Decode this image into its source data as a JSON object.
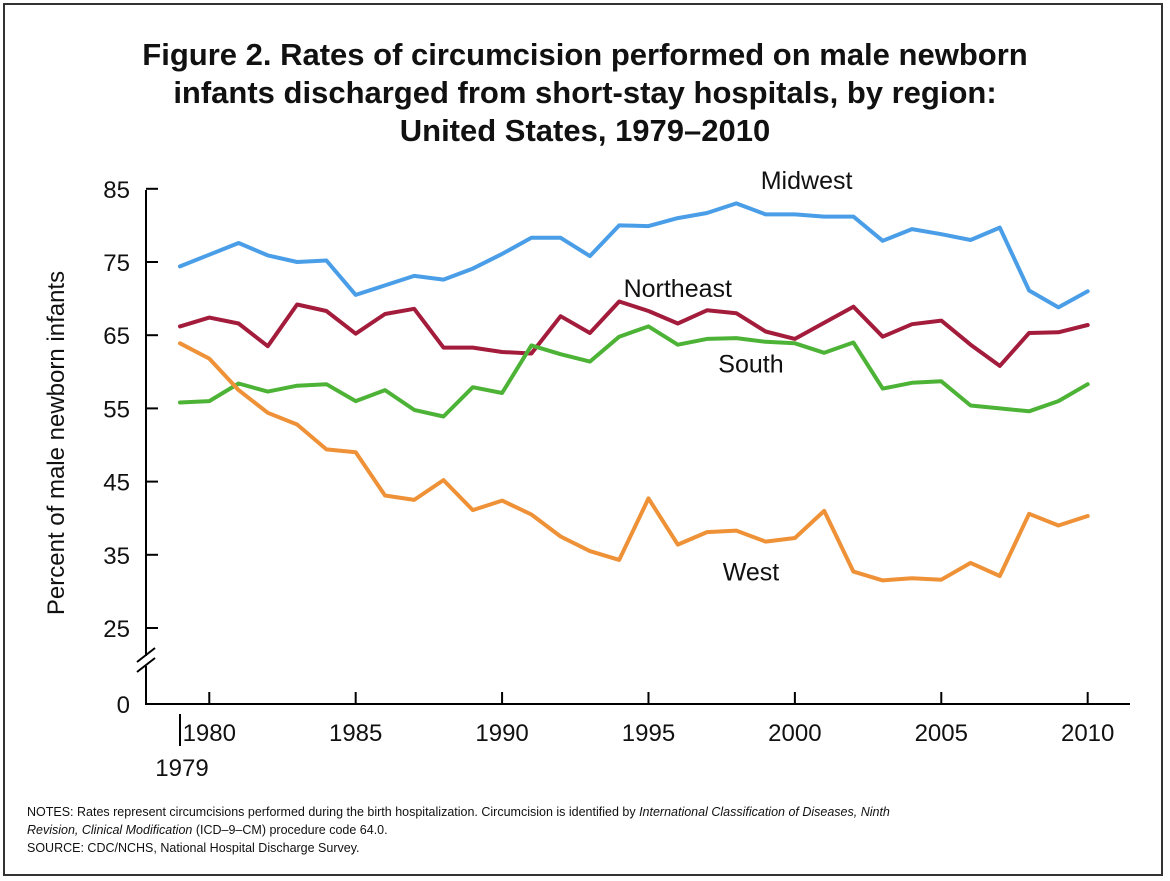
{
  "title_lines": [
    "Figure 2. Rates of circumcision performed on male newborn",
    "infants discharged from short-stay hospitals, by region:",
    "United States, 1979–2010"
  ],
  "notes": {
    "line1_start": "NOTES: Rates represent circumcisions performed during the birth hospitalization. Circumcision is identified by ",
    "line1_italic": "International Classification of Diseases, Ninth",
    "line2_italic": "Revision, Clinical Modification",
    "line2_rest": " (ICD–9–CM) procedure code 64.0.",
    "source": "SOURCE: CDC/NCHS, National Hospital Discharge Survey."
  },
  "chart_data": {
    "type": "line",
    "ylabel": "Percent of male newborn infants",
    "xlabel": "",
    "y_ticks": [
      85,
      75,
      65,
      55,
      45,
      35,
      25,
      0
    ],
    "y_axis_break": true,
    "x_ticks": [
      "1980",
      "1985",
      "1990",
      "1995",
      "2000",
      "2005",
      "2010"
    ],
    "x_start_label": "1979",
    "x": [
      1979,
      1980,
      1981,
      1982,
      1983,
      1984,
      1985,
      1986,
      1987,
      1988,
      1989,
      1990,
      1991,
      1992,
      1993,
      1994,
      1995,
      1996,
      1997,
      1998,
      1999,
      2000,
      2001,
      2002,
      2003,
      2004,
      2005,
      2006,
      2007,
      2008,
      2009,
      2010
    ],
    "series": [
      {
        "name": "Midwest",
        "color": "#4a9ee8",
        "values": [
          74.4,
          76.0,
          77.6,
          75.9,
          75.0,
          75.2,
          70.5,
          71.8,
          73.1,
          72.6,
          74.1,
          76.1,
          78.3,
          78.3,
          75.8,
          80.0,
          79.9,
          81.0,
          81.7,
          83.0,
          81.5,
          81.5,
          81.2,
          81.2,
          77.9,
          79.5,
          78.8,
          78.0,
          79.7,
          71.1,
          68.8,
          71.0
        ]
      },
      {
        "name": "Northeast",
        "color": "#a31c3c",
        "values": [
          66.2,
          67.4,
          66.6,
          63.5,
          69.2,
          68.3,
          65.2,
          67.9,
          68.6,
          63.3,
          63.3,
          62.7,
          62.5,
          67.6,
          65.3,
          69.6,
          68.3,
          66.6,
          68.4,
          68.0,
          65.5,
          64.5,
          66.7,
          68.9,
          64.8,
          66.5,
          67.0,
          63.7,
          60.8,
          65.3,
          65.4,
          66.4
        ]
      },
      {
        "name": "South",
        "color": "#4db336",
        "values": [
          55.8,
          56.0,
          58.4,
          57.3,
          58.1,
          58.3,
          56.0,
          57.5,
          54.8,
          53.9,
          57.9,
          57.1,
          63.6,
          62.4,
          61.4,
          64.8,
          66.2,
          63.7,
          64.5,
          64.6,
          64.1,
          63.9,
          62.6,
          64.0,
          57.7,
          58.5,
          58.7,
          55.4,
          55.0,
          54.6,
          56.0,
          58.3
        ]
      },
      {
        "name": "West",
        "color": "#ee9137",
        "values": [
          63.9,
          61.8,
          57.5,
          54.4,
          52.8,
          49.4,
          49.0,
          43.1,
          42.5,
          45.2,
          41.1,
          42.4,
          40.5,
          37.5,
          35.5,
          34.3,
          42.7,
          36.4,
          38.1,
          38.3,
          36.8,
          37.3,
          41.0,
          32.7,
          31.5,
          31.8,
          31.6,
          33.9,
          32.1,
          40.6,
          39.0,
          40.3
        ]
      }
    ],
    "legend": "inline labels near lines",
    "grid": false
  }
}
